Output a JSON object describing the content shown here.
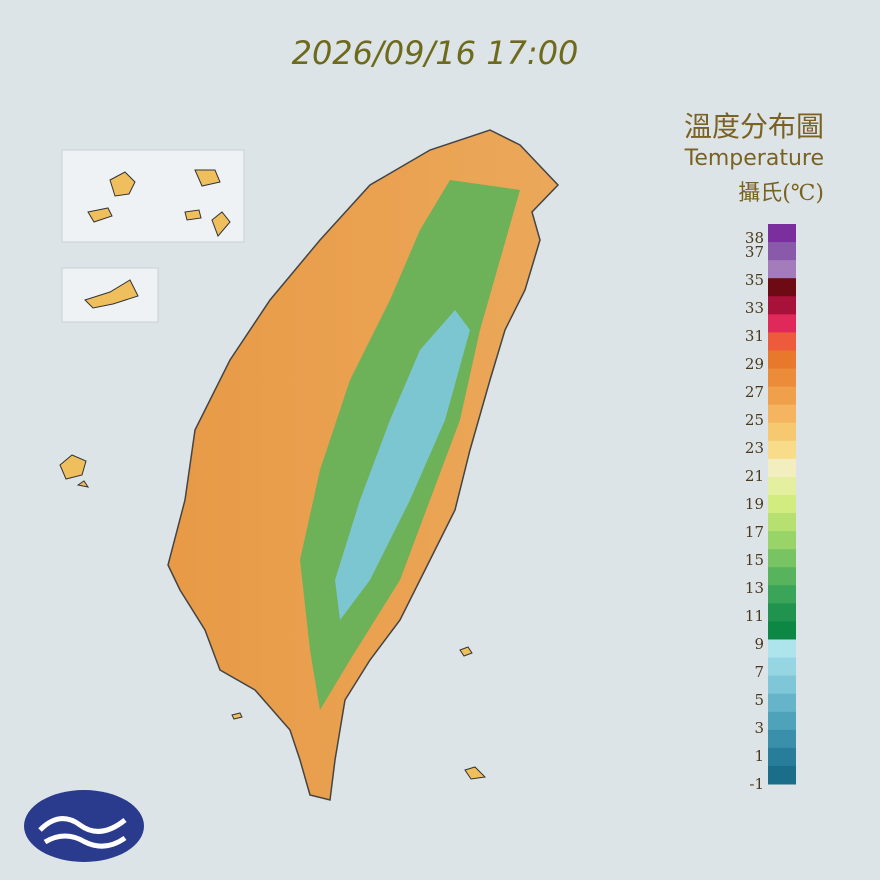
{
  "timestamp": "2026/09/16 17:00",
  "legend": {
    "title": "溫度分布圖",
    "subtitle": "Temperature",
    "unit": "攝氏(℃)",
    "ticks": [
      38,
      37,
      35,
      33,
      31,
      29,
      27,
      25,
      23,
      21,
      19,
      17,
      15,
      13,
      11,
      9,
      7,
      5,
      3,
      1,
      -1
    ],
    "colors": [
      "#7b2e9e",
      "#8a5aaa",
      "#a47cbc",
      "#6e0a14",
      "#a8123a",
      "#e0285a",
      "#ee5a3c",
      "#e8782c",
      "#ec8c3a",
      "#f0a04a",
      "#f4b460",
      "#f6c870",
      "#f8dc8a",
      "#f2eec0",
      "#e4f0a0",
      "#d2ec80",
      "#b6e070",
      "#98d468",
      "#78c462",
      "#58b45c",
      "#3aa458",
      "#20944e",
      "#0c8844",
      "#aee4ec",
      "#96d6e2",
      "#7ec6d8",
      "#66b4ca",
      "#4ea2ba",
      "#3a90aa",
      "#287e9a",
      "#1a6e8a"
    ]
  }
}
